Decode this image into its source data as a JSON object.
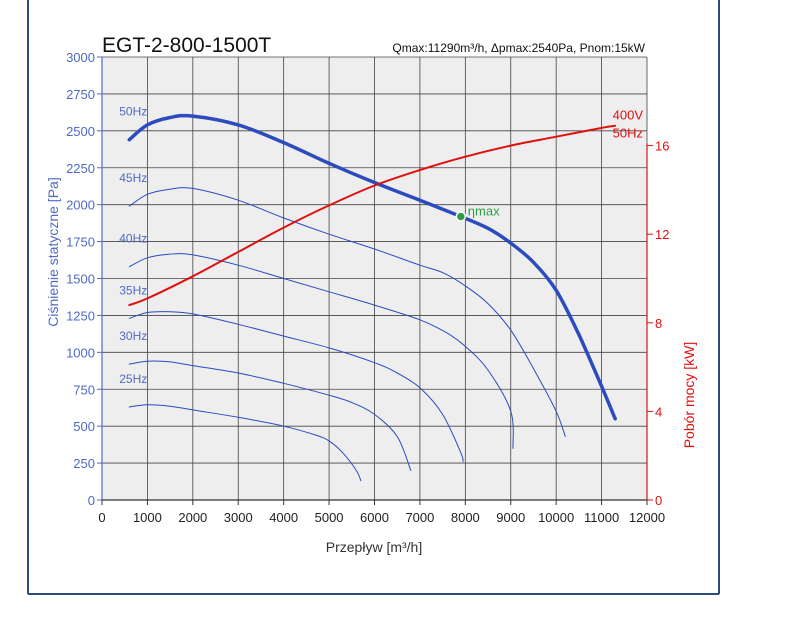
{
  "chart_data": {
    "type": "line",
    "title": "EGT-2-800-1500T",
    "subtitle": "Qmax:11290m³/h, Δpmax:2540Pa, Pnom:15kW",
    "xlabel": "Przepływ [m³/h]",
    "ylabel": "Ciśnienie statyczne [Pa]",
    "y2label": "Pobór mocy [kW]",
    "xlim": [
      0,
      12000
    ],
    "ylim": [
      0,
      3000
    ],
    "y2lim": [
      0,
      20
    ],
    "x_ticks": [
      0,
      1000,
      2000,
      3000,
      4000,
      5000,
      6000,
      7000,
      8000,
      9000,
      10000,
      11000,
      12000
    ],
    "y_ticks": [
      0,
      250,
      500,
      750,
      1000,
      1250,
      1500,
      1750,
      2000,
      2250,
      2500,
      2750,
      3000
    ],
    "y2_ticks": [
      0,
      4,
      8,
      12,
      16
    ],
    "grid": true,
    "series": [
      {
        "name": "50Hz",
        "axis": "y",
        "color": "#2b4bbf",
        "bold": true,
        "points": [
          [
            600,
            2440
          ],
          [
            1000,
            2540
          ],
          [
            1500,
            2590
          ],
          [
            2000,
            2600
          ],
          [
            3000,
            2540
          ],
          [
            4000,
            2420
          ],
          [
            5000,
            2280
          ],
          [
            6000,
            2150
          ],
          [
            7000,
            2030
          ],
          [
            7900,
            1920
          ],
          [
            8500,
            1840
          ],
          [
            9000,
            1740
          ],
          [
            9500,
            1610
          ],
          [
            10000,
            1420
          ],
          [
            10500,
            1120
          ],
          [
            11000,
            770
          ],
          [
            11300,
            550
          ]
        ]
      },
      {
        "name": "45Hz",
        "axis": "y",
        "color": "#2b4bbf",
        "bold": false,
        "points": [
          [
            600,
            1990
          ],
          [
            1000,
            2070
          ],
          [
            1500,
            2105
          ],
          [
            2000,
            2110
          ],
          [
            3000,
            2030
          ],
          [
            4000,
            1910
          ],
          [
            5000,
            1800
          ],
          [
            6000,
            1700
          ],
          [
            7000,
            1590
          ],
          [
            7500,
            1540
          ],
          [
            8000,
            1450
          ],
          [
            8500,
            1330
          ],
          [
            9000,
            1150
          ],
          [
            9500,
            890
          ],
          [
            10000,
            600
          ],
          [
            10200,
            430
          ]
        ]
      },
      {
        "name": "40Hz",
        "axis": "y",
        "color": "#2b4bbf",
        "bold": false,
        "points": [
          [
            600,
            1580
          ],
          [
            1000,
            1640
          ],
          [
            1500,
            1665
          ],
          [
            2000,
            1660
          ],
          [
            3000,
            1590
          ],
          [
            4000,
            1500
          ],
          [
            5000,
            1410
          ],
          [
            6000,
            1320
          ],
          [
            7000,
            1220
          ],
          [
            7600,
            1130
          ],
          [
            8000,
            1040
          ],
          [
            8500,
            880
          ],
          [
            9000,
            600
          ],
          [
            9050,
            350
          ]
        ]
      },
      {
        "name": "35Hz",
        "axis": "y",
        "color": "#2b4bbf",
        "bold": false,
        "points": [
          [
            600,
            1230
          ],
          [
            1000,
            1270
          ],
          [
            1500,
            1275
          ],
          [
            2000,
            1260
          ],
          [
            3000,
            1190
          ],
          [
            4000,
            1110
          ],
          [
            5000,
            1030
          ],
          [
            6000,
            930
          ],
          [
            6500,
            860
          ],
          [
            7000,
            760
          ],
          [
            7500,
            580
          ],
          [
            7900,
            320
          ],
          [
            7950,
            260
          ]
        ]
      },
      {
        "name": "30Hz",
        "axis": "y",
        "color": "#2b4bbf",
        "bold": false,
        "points": [
          [
            600,
            920
          ],
          [
            1000,
            940
          ],
          [
            1500,
            935
          ],
          [
            2000,
            910
          ],
          [
            3000,
            860
          ],
          [
            4000,
            790
          ],
          [
            5000,
            710
          ],
          [
            5500,
            660
          ],
          [
            6000,
            580
          ],
          [
            6500,
            430
          ],
          [
            6800,
            200
          ]
        ]
      },
      {
        "name": "25Hz",
        "axis": "y",
        "color": "#2b4bbf",
        "bold": false,
        "points": [
          [
            600,
            630
          ],
          [
            1000,
            645
          ],
          [
            1500,
            635
          ],
          [
            2000,
            610
          ],
          [
            3000,
            560
          ],
          [
            4000,
            500
          ],
          [
            4700,
            440
          ],
          [
            5000,
            400
          ],
          [
            5300,
            320
          ],
          [
            5600,
            200
          ],
          [
            5700,
            130
          ]
        ]
      },
      {
        "name": "400V 50Hz",
        "axis": "y2",
        "color": "#e01010",
        "bold": false,
        "points": [
          [
            600,
            8.8
          ],
          [
            1000,
            9.1
          ],
          [
            2000,
            10.1
          ],
          [
            3000,
            11.2
          ],
          [
            4000,
            12.3
          ],
          [
            5000,
            13.3
          ],
          [
            6000,
            14.2
          ],
          [
            7000,
            14.9
          ],
          [
            8000,
            15.5
          ],
          [
            9000,
            16.0
          ],
          [
            10000,
            16.4
          ],
          [
            11000,
            16.8
          ],
          [
            11300,
            16.9
          ]
        ]
      }
    ],
    "curve_labels": [
      "50Hz",
      "45Hz",
      "40Hz",
      "35Hz",
      "30Hz",
      "25Hz"
    ],
    "power_label": [
      "400V",
      "50Hz"
    ],
    "efficiency_point": {
      "label": "ηmax",
      "x": 7900,
      "y": 1920,
      "color": "#2e9e44"
    }
  },
  "colors": {
    "frame": "#2b4b7a",
    "pressure_axis": "#4f6bc4",
    "power_axis": "#e01010",
    "plot_bg": "#eeeeee",
    "grid": "#444444"
  }
}
